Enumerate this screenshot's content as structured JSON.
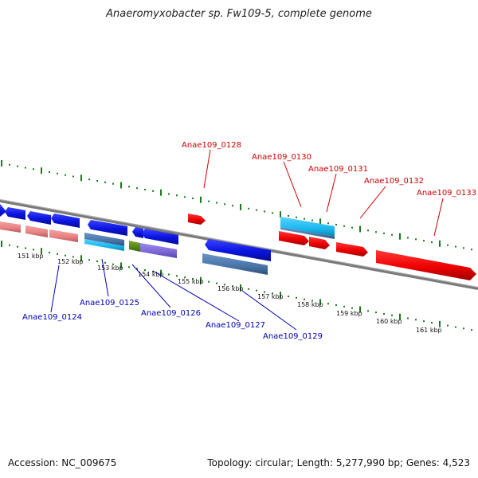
{
  "title": "Anaeromyxobacter sp. Fw109-5, complete genome",
  "footer": {
    "accession": "Accession: NC_009675",
    "summary": "Topology: circular; Length: 5,277,990 bp; Genes: 4,523"
  },
  "colors": {
    "forward_label": "#cc0000",
    "reverse_label": "#0000b3",
    "backbone": "#7a7a7a",
    "tick_green": "#1a7a1a",
    "blue_gene": "#0a14e0",
    "red_gene": "#ee0000",
    "pink_gene": "#e88080",
    "cyan_gene": "#1ab8ee",
    "slate_gene": "#4a74a8",
    "purple_gene": "#7a66d6",
    "olive_gene": "#5a8a1a"
  },
  "scale": {
    "kbp_labels": [
      "151 kbp",
      "152 kbp",
      "153 kbp",
      "154 kbp",
      "155 kbp",
      "156 kbp",
      "157 kbp",
      "158 kbp",
      "159 kbp",
      "160 kbp",
      "161 kbp"
    ]
  },
  "genes_labeled": {
    "forward": [
      "Anae109_0128",
      "Anae109_0130",
      "Anae109_0131",
      "Anae109_0132",
      "Anae109_0133"
    ],
    "reverse": [
      "Anae109_0124",
      "Anae109_0125",
      "Anae109_0126",
      "Anae109_0127",
      "Anae109_0129"
    ]
  }
}
